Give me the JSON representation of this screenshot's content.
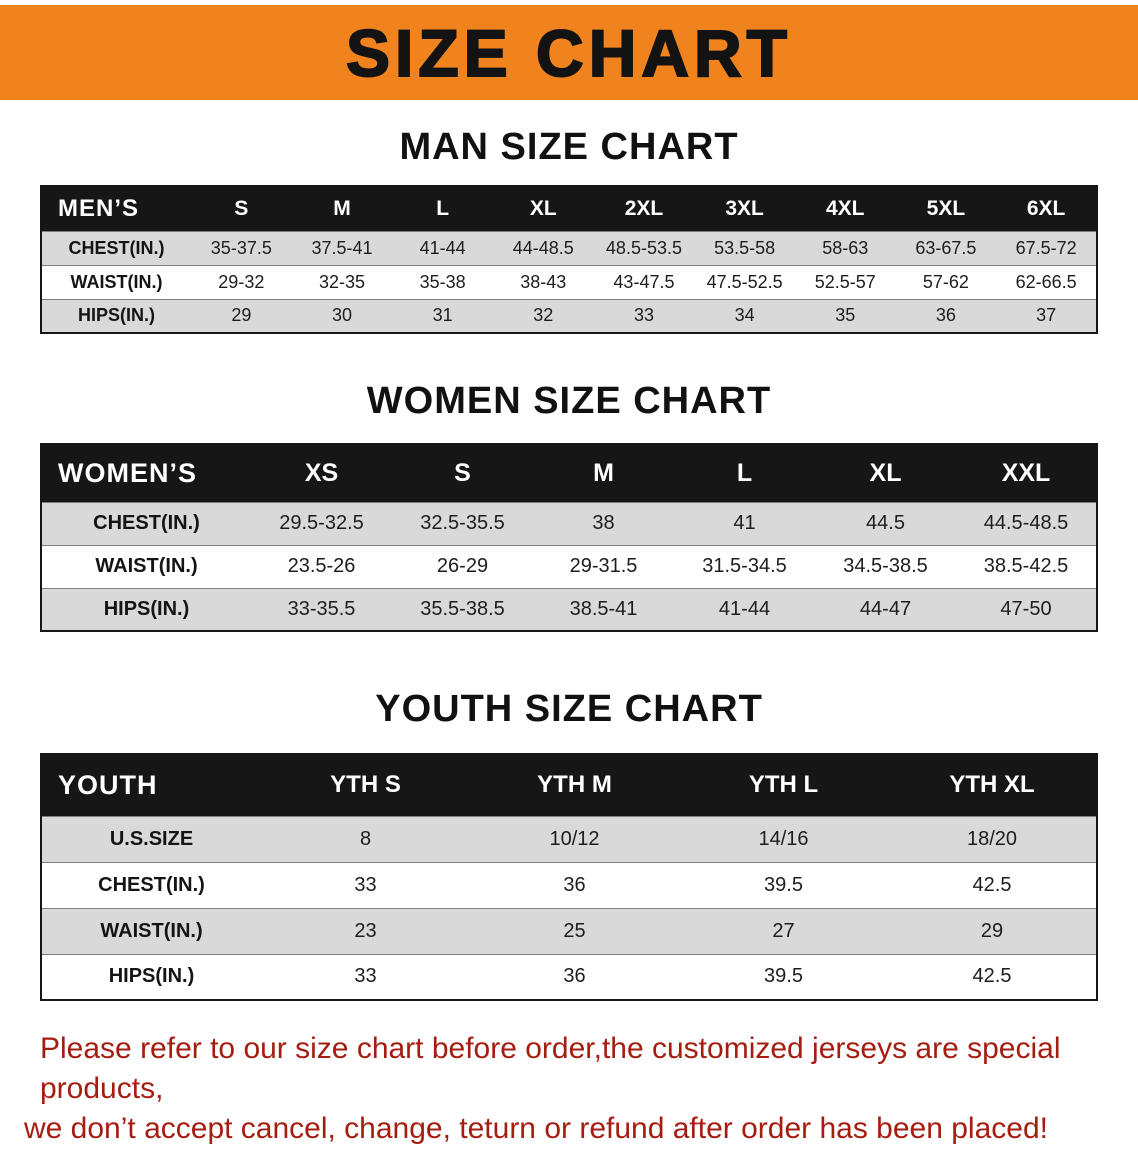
{
  "banner": {
    "title": "SIZE CHART"
  },
  "chart_data": [
    {
      "type": "table",
      "title": "MAN SIZE CHART",
      "header": [
        "MEN’S",
        "S",
        "M",
        "L",
        "XL",
        "2XL",
        "3XL",
        "4XL",
        "5XL",
        "6XL"
      ],
      "rows": [
        {
          "label": "CHEST(IN.)",
          "values": [
            "35-37.5",
            "37.5-41",
            "41-44",
            "44-48.5",
            "48.5-53.5",
            "53.5-58",
            "58-63",
            "63-67.5",
            "67.5-72"
          ]
        },
        {
          "label": "WAIST(IN.)",
          "values": [
            "29-32",
            "32-35",
            "35-38",
            "38-43",
            "43-47.5",
            "47.5-52.5",
            "52.5-57",
            "57-62",
            "62-66.5"
          ]
        },
        {
          "label": "HIPS(IN.)",
          "values": [
            "29",
            "30",
            "31",
            "32",
            "33",
            "34",
            "35",
            "36",
            "37"
          ]
        }
      ]
    },
    {
      "type": "table",
      "title": "WOMEN SIZE CHART",
      "header": [
        "WOMEN’S",
        "XS",
        "S",
        "M",
        "L",
        "XL",
        "XXL"
      ],
      "rows": [
        {
          "label": "CHEST(IN.)",
          "values": [
            "29.5-32.5",
            "32.5-35.5",
            "38",
            "41",
            "44.5",
            "44.5-48.5"
          ]
        },
        {
          "label": "WAIST(IN.)",
          "values": [
            "23.5-26",
            "26-29",
            "29-31.5",
            "31.5-34.5",
            "34.5-38.5",
            "38.5-42.5"
          ]
        },
        {
          "label": "HIPS(IN.)",
          "values": [
            "33-35.5",
            "35.5-38.5",
            "38.5-41",
            "41-44",
            "44-47",
            "47-50"
          ]
        }
      ]
    },
    {
      "type": "table",
      "title": "YOUTH SIZE CHART",
      "header": [
        "YOUTH",
        "YTH S",
        "YTH M",
        "YTH L",
        "YTH XL"
      ],
      "rows": [
        {
          "label": "U.S.SIZE",
          "values": [
            "8",
            "10/12",
            "14/16",
            "18/20"
          ]
        },
        {
          "label": "CHEST(IN.)",
          "values": [
            "33",
            "36",
            "39.5",
            "42.5"
          ]
        },
        {
          "label": "WAIST(IN.)",
          "values": [
            "23",
            "25",
            "27",
            "29"
          ]
        },
        {
          "label": "HIPS(IN.)",
          "values": [
            "33",
            "36",
            "39.5",
            "42.5"
          ]
        }
      ]
    }
  ],
  "notice": {
    "line1": "Please refer to our size chart before order,the customized jerseys are special products,",
    "line2": "we don’t accept cancel, change, teturn or refund after order has been placed!"
  },
  "colors": {
    "banner_bg": "#f0831d",
    "header_bar": "#161616",
    "row_gray": "#d9d9d9",
    "notice_red": "#a51d10"
  }
}
